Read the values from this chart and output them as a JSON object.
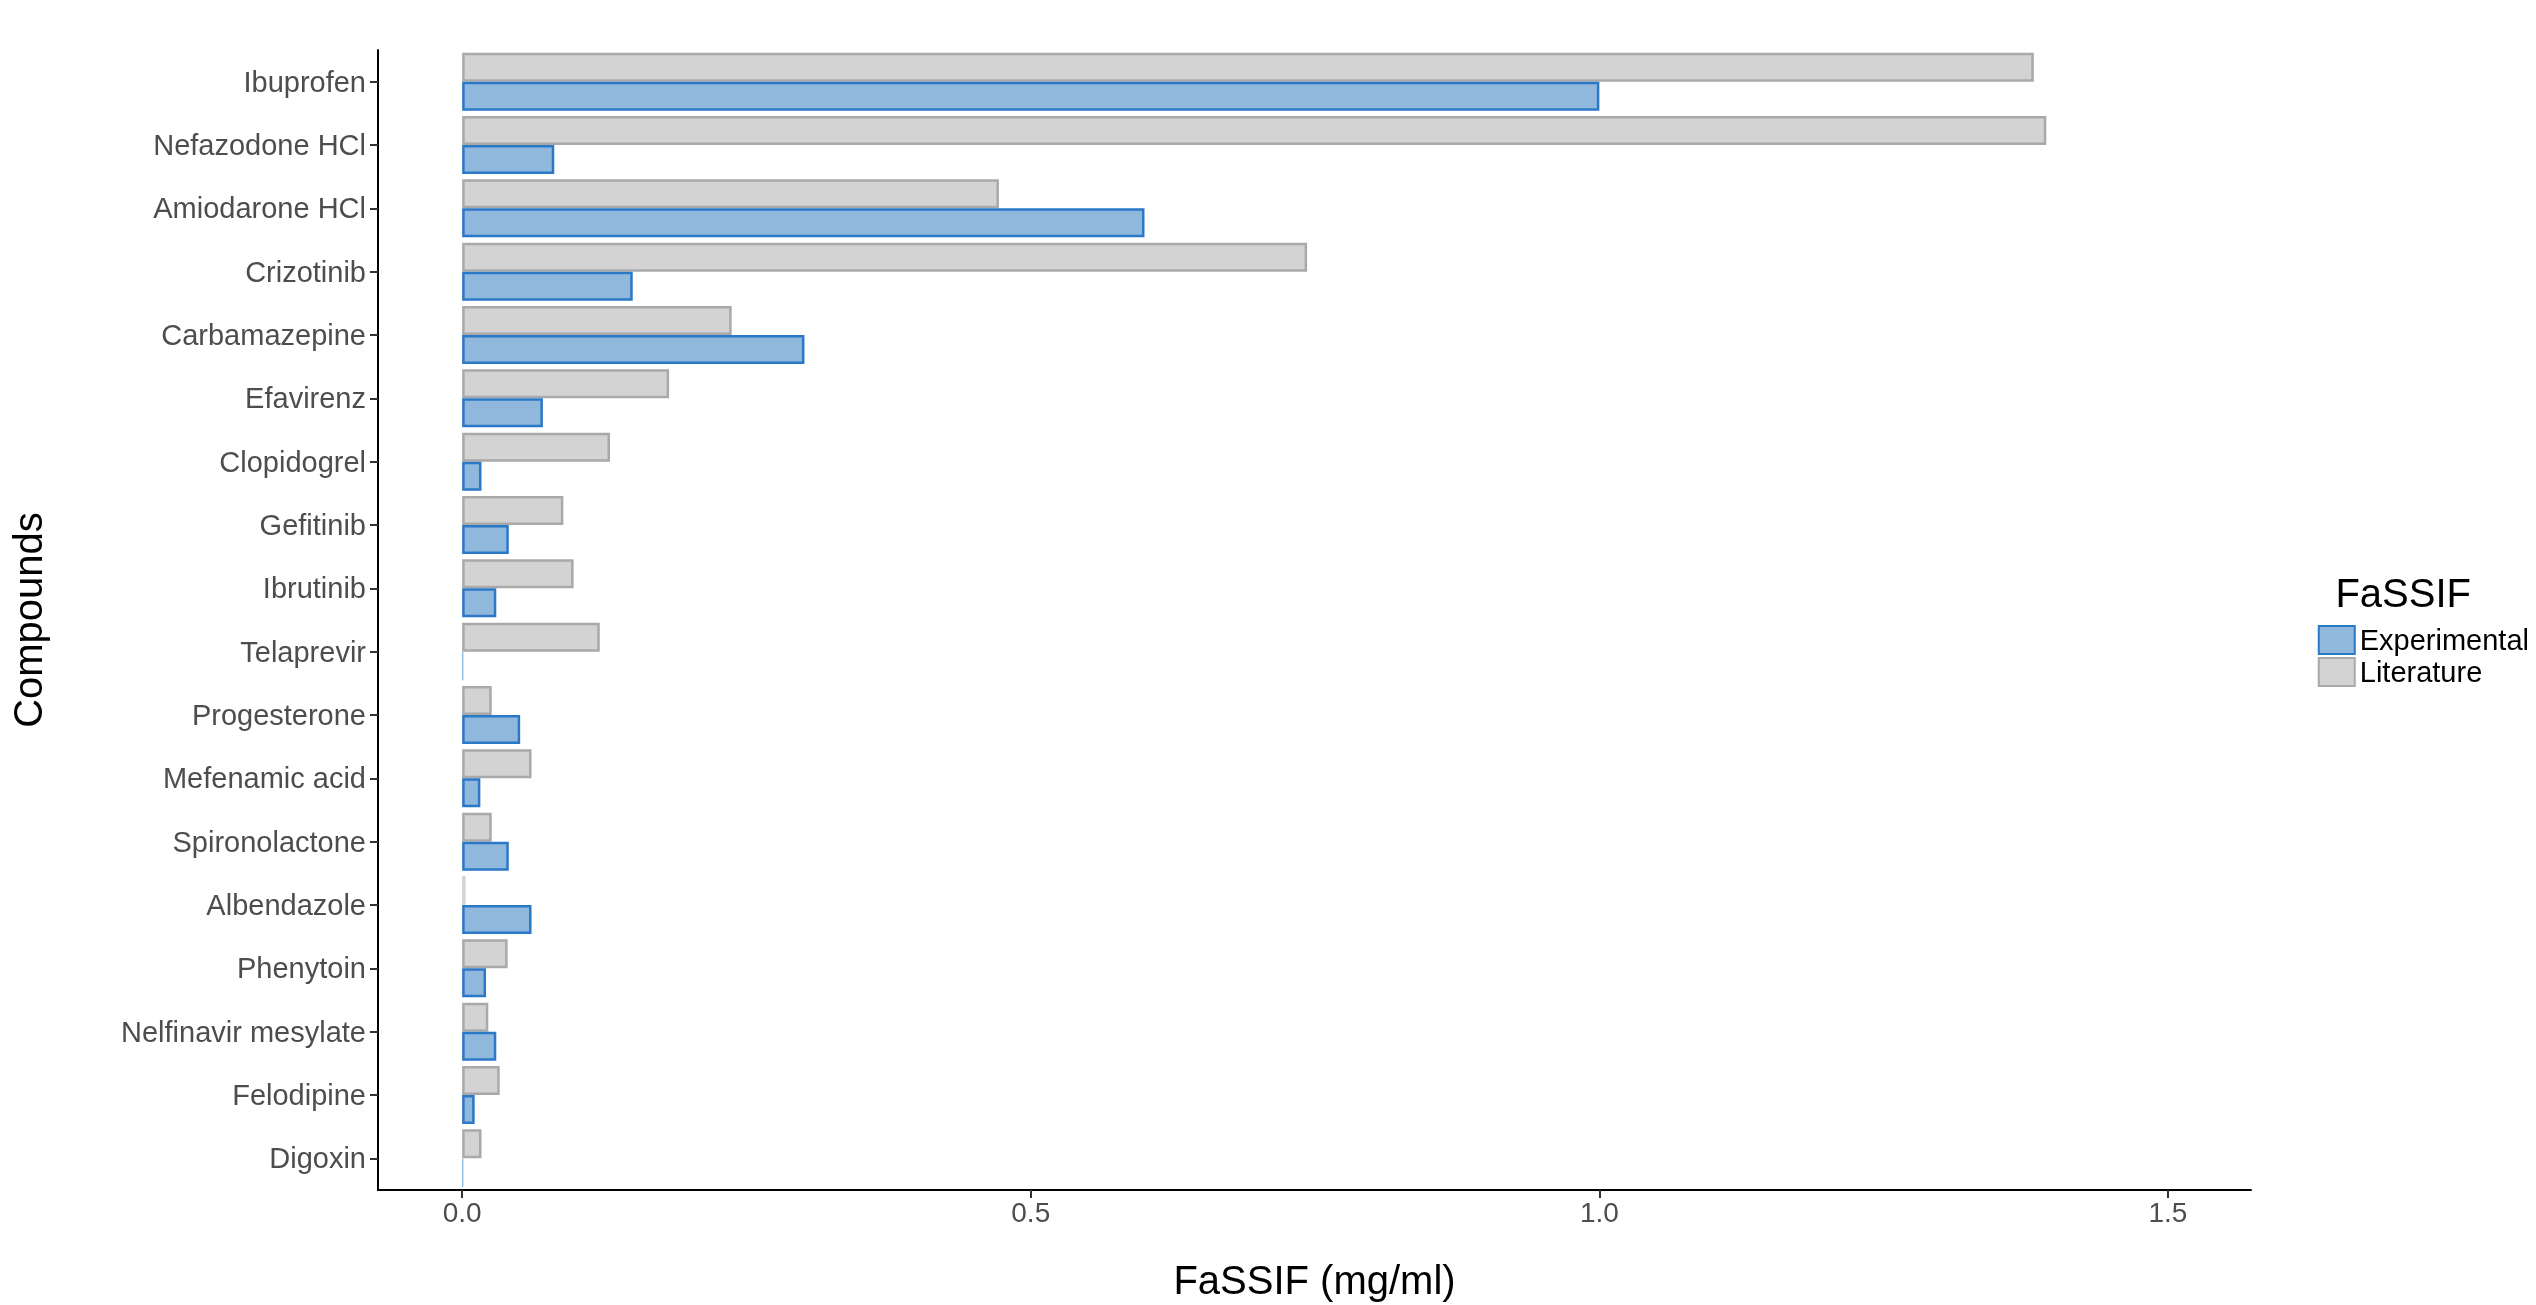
{
  "chart_data": {
    "type": "bar",
    "orientation": "horizontal",
    "xlabel": "FaSSIF (mg/ml)",
    "ylabel": "Compounds",
    "legend_title": "FaSSIF",
    "legend": "right",
    "grid": false,
    "categories": [
      "Ibuprofen",
      "Nefazodone HCl",
      "Amiodarone HCl",
      "Crizotinib",
      "Carbamazepine",
      "Efavirenz",
      "Clopidogrel",
      "Gefitinib",
      "Ibrutinib",
      "Telaprevir",
      "Progesterone",
      "Mefenamic acid",
      "Spironolactone",
      "Albendazole",
      "Phenytoin",
      "Nelfinavir mesylate",
      "Felodipine",
      "Digoxin"
    ],
    "series": [
      {
        "name": "Experimental",
        "color": "#8fb8dc",
        "values": [
          1.0,
          0.081,
          0.6,
          0.15,
          0.301,
          0.071,
          0.017,
          0.041,
          0.03,
          0.001,
          0.051,
          0.016,
          0.041,
          0.061,
          0.021,
          0.03,
          0.011,
          0.001
        ]
      },
      {
        "name": "Literature",
        "color": "#d3d3d3",
        "values": [
          1.382,
          1.393,
          0.472,
          0.743,
          0.237,
          0.182,
          0.13,
          0.089,
          0.098,
          0.121,
          0.026,
          0.061,
          0.026,
          0.003,
          0.04,
          0.023,
          0.033,
          0.017
        ]
      }
    ],
    "xlim": [
      -0.074,
      1.573
    ],
    "xticks": [
      {
        "value": 0,
        "label": "0.0"
      },
      0.5,
      {
        "value": 1,
        "label": "1.0"
      },
      1.5
    ]
  }
}
